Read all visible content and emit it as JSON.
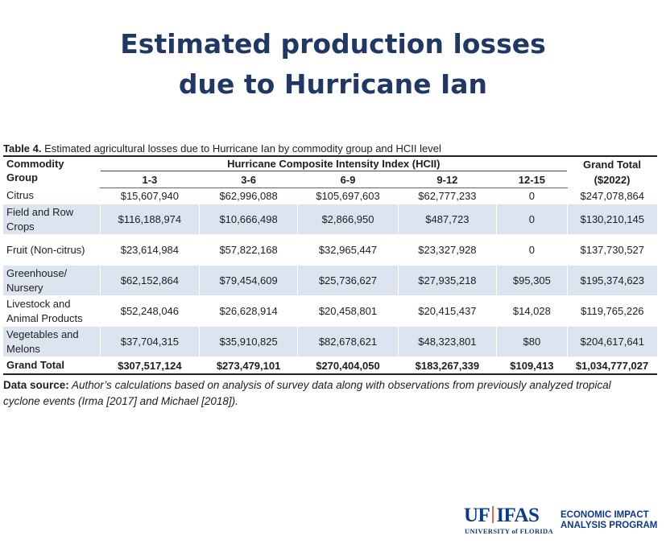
{
  "title": {
    "line1": "Estimated production losses",
    "line2": "due to Hurricane Ian"
  },
  "caption": {
    "label": "Table 4.",
    "text": " Estimated agricultural losses due to Hurricane Ian by commodity group and HCII level"
  },
  "table": {
    "header": {
      "group_label": "Commodity Group",
      "hcii_label": "Hurricane Composite Intensity Index (HCII)",
      "levels": [
        "1-3",
        "3-6",
        "6-9",
        "9-12",
        "12-15"
      ],
      "grand_total_label": "Grand Total ($2022)"
    },
    "rows": [
      {
        "group": "Citrus",
        "values": [
          "$15,607,940",
          "$62,996,088",
          "$105,697,603",
          "$62,777,233",
          "0"
        ],
        "total": "$247,078,864"
      },
      {
        "group": "Field and Row Crops",
        "values": [
          "$116,188,974",
          "$10,666,498",
          "$2,866,950",
          "$487,723",
          "0"
        ],
        "total": "$130,210,145"
      },
      {
        "group": "Fruit (Non-citrus)",
        "values": [
          "$23,614,984",
          "$57,822,168",
          "$32,965,447",
          "$23,327,928",
          "0"
        ],
        "total": "$137,730,527"
      },
      {
        "group": "Greenhouse/ Nursery",
        "values": [
          "$62,152,864",
          "$79,454,609",
          "$25,736,627",
          "$27,935,218",
          "$95,305"
        ],
        "total": "$195,374,623"
      },
      {
        "group": "Livestock and Animal Products",
        "values": [
          "$52,248,046",
          "$26,628,914",
          "$20,458,801",
          "$20,415,437",
          "$14,028"
        ],
        "total": "$119,765,226"
      },
      {
        "group": "Vegetables and Melons",
        "values": [
          "$37,704,315",
          "$35,910,825",
          "$82,678,621",
          "$48,323,801",
          "$80"
        ],
        "total": "$204,617,641"
      }
    ],
    "grand_total": {
      "label": "Grand Total",
      "values": [
        "$307,517,124",
        "$273,479,101",
        "$270,404,050",
        "$183,267,339",
        "$109,413"
      ],
      "total": "$1,034,777,027"
    }
  },
  "data_source": {
    "label": "Data source:",
    "text": " Author’s calculations based on analysis of survey data along with observations from previously analyzed tropical cyclone events (Irma [2017] and Michael [2018])."
  },
  "logo": {
    "uf": "UF",
    "ifas": "IFAS",
    "university": "UNIVERSITY of FLORIDA",
    "program_line1": "ECONOMIC IMPACT",
    "program_line2": "ANALYSIS PROGRAM"
  },
  "colors": {
    "title": "#1f3864",
    "row_alt": "#dce4ef",
    "logo_blue": "#0b3a8c",
    "logo_orange": "#e8702a"
  }
}
